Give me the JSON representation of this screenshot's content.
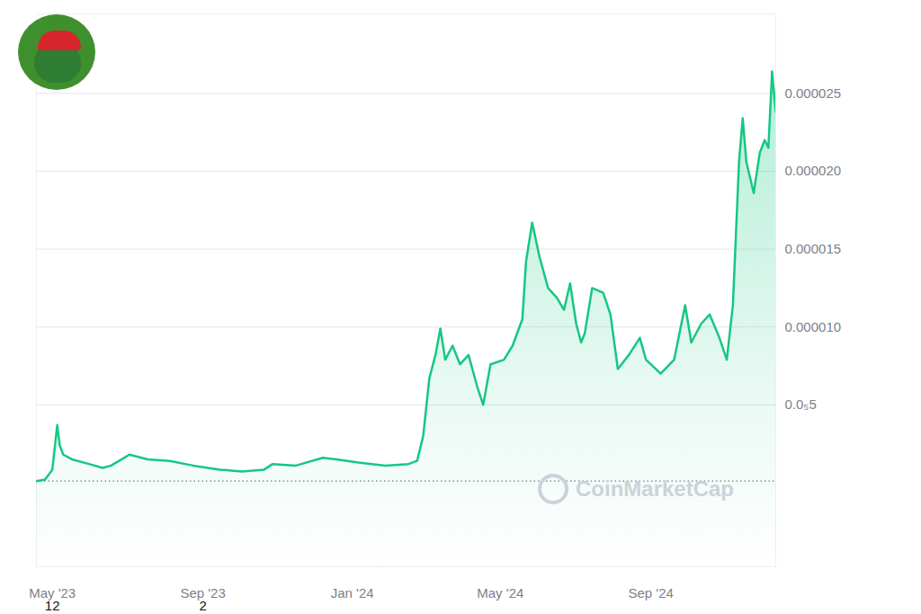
{
  "chart_data": {
    "type": "line",
    "color": "#16c784",
    "grid": true,
    "watermark": "CoinMarketCap",
    "reference_value": 1e-07,
    "xlim": [
      "2023-04-18",
      "2024-12-12"
    ],
    "xticks": [
      {
        "value": "2023-05-01",
        "label": "May '23"
      },
      {
        "value": "2023-09-01",
        "label": "Sep '23"
      },
      {
        "value": "2024-01-01",
        "label": "Jan '24"
      },
      {
        "value": "2024-05-01",
        "label": "May '24"
      },
      {
        "value": "2024-09-01",
        "label": "Sep '24"
      }
    ],
    "ylim": [
      -5.4e-06,
      3.01e-05
    ],
    "yticks": [
      {
        "value": 5e-06,
        "label": "0.0₅5"
      },
      {
        "value": 1e-05,
        "label": "0.000010"
      },
      1.5e-05,
      {
        "value": 2e-05,
        "label": "0.000020"
      },
      2.5e-05
    ],
    "annotations": [
      {
        "text": "12",
        "x": "2023-05-01"
      },
      {
        "text": "2",
        "x": "2023-09-01"
      }
    ],
    "x": [
      "2023-04-18",
      "2023-04-25",
      "2023-05-01",
      "2023-05-05",
      "2023-05-07",
      "2023-05-10",
      "2023-05-17",
      "2023-05-31",
      "2023-06-11",
      "2023-06-18",
      "2023-07-03",
      "2023-07-18",
      "2023-08-05",
      "2023-08-24",
      "2023-09-15",
      "2023-10-03",
      "2023-10-21",
      "2023-10-28",
      "2023-11-16",
      "2023-12-08",
      "2023-12-19",
      "2024-01-06",
      "2024-01-28",
      "2024-02-16",
      "2024-02-23",
      "2024-02-28",
      "2024-03-04",
      "2024-03-09",
      "2024-03-13",
      "2024-03-17",
      "2024-03-23",
      "2024-03-29",
      "2024-04-05",
      "2024-04-12",
      "2024-04-17",
      "2024-04-23",
      "2024-05-04",
      "2024-05-11",
      "2024-05-19",
      "2024-05-22",
      "2024-05-27",
      "2024-06-02",
      "2024-06-09",
      "2024-06-16",
      "2024-06-22",
      "2024-06-27",
      "2024-07-02",
      "2024-07-06",
      "2024-07-09",
      "2024-07-15",
      "2024-07-24",
      "2024-07-30",
      "2024-08-05",
      "2024-08-14",
      "2024-08-23",
      "2024-08-28",
      "2024-09-09",
      "2024-09-20",
      "2024-09-29",
      "2024-10-04",
      "2024-10-12",
      "2024-10-19",
      "2024-10-27",
      "2024-11-02",
      "2024-11-07",
      "2024-11-12",
      "2024-11-15",
      "2024-11-18",
      "2024-11-24",
      "2024-11-29",
      "2024-12-03",
      "2024-12-06",
      "2024-12-09",
      "2024-12-12"
    ],
    "values": [
      1e-07,
      2e-07,
      8.4e-07,
      3.7e-06,
      2.4e-06,
      1.8e-06,
      1.5e-06,
      1.2e-06,
      9.5e-07,
      1.1e-06,
      1.8e-06,
      1.5e-06,
      1.4e-06,
      1.1e-06,
      8.4e-07,
      7.2e-07,
      8.4e-07,
      1.2e-06,
      1.1e-06,
      1.6e-06,
      1.5e-06,
      1.3e-06,
      1.1e-06,
      1.2e-06,
      1.4e-06,
      3e-06,
      6.7e-06,
      8.2e-06,
      9.9e-06,
      7.9e-06,
      8.8e-06,
      7.6e-06,
      8.2e-06,
      6.2e-06,
      5e-06,
      7.6e-06,
      7.9e-06,
      8.8e-06,
      1.05e-05,
      1.42e-05,
      1.67e-05,
      1.45e-05,
      1.25e-05,
      1.19e-05,
      1.11e-05,
      1.28e-05,
      1.02e-05,
      9e-06,
      9.6e-06,
      1.25e-05,
      1.22e-05,
      1.08e-05,
      7.3e-06,
      8.2e-06,
      9.3e-06,
      7.9e-06,
      7e-06,
      7.9e-06,
      1.14e-05,
      9e-06,
      1.02e-05,
      1.08e-05,
      9.3e-06,
      7.9e-06,
      1.14e-05,
      2.06e-05,
      2.34e-05,
      2.06e-05,
      1.86e-05,
      2.12e-05,
      2.2e-05,
      2.15e-05,
      2.64e-05,
      2.38e-05
    ]
  }
}
